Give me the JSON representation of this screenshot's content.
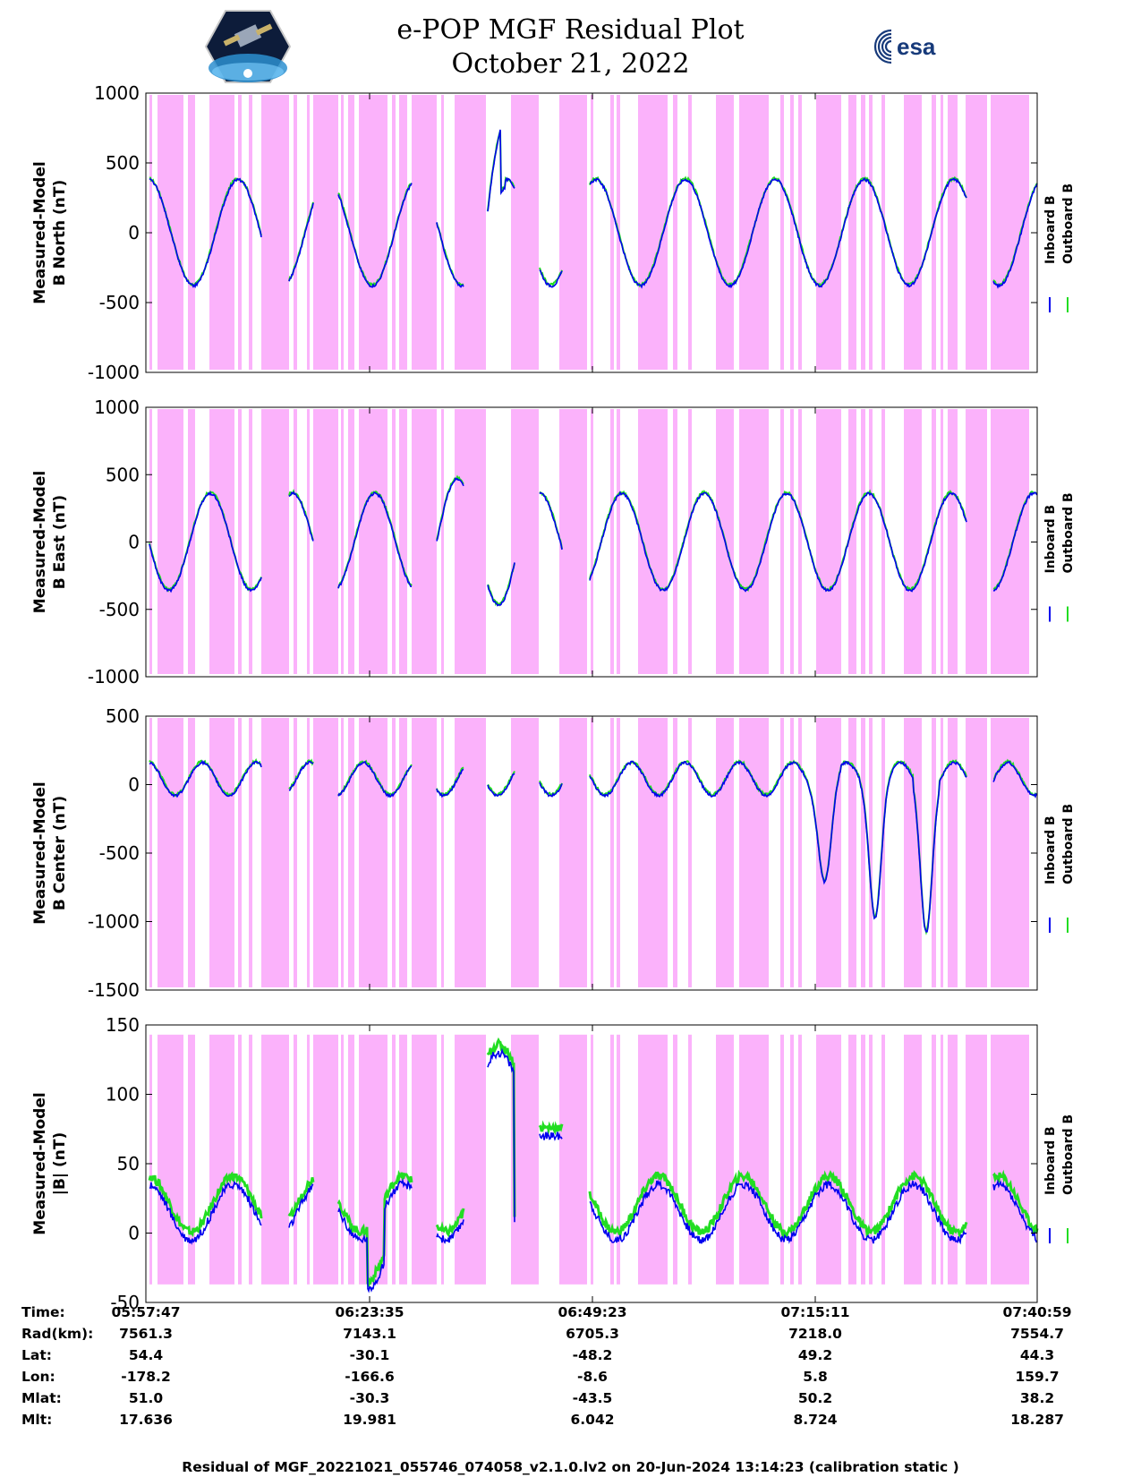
{
  "title": {
    "line1": "e-POP MGF Residual Plot",
    "line2": "October 21, 2022"
  },
  "logos": {
    "left": "cassiope-mission-logo",
    "right": "esa-logo",
    "right_text": "esa"
  },
  "colors": {
    "inboard": "#0000ee",
    "outboard": "#22dd22",
    "shading": "#fbb2fb",
    "axis": "#000000"
  },
  "legend": {
    "inboard": "Inboard B",
    "outboard": "Outboard B"
  },
  "chart_data": [
    {
      "type": "line",
      "ylabel_line1": "Measured-Model",
      "ylabel_line2": "B North (nT)",
      "ylim": [
        -1000,
        1000
      ],
      "yticks": [
        1000,
        500,
        0,
        -500,
        -1000
      ],
      "series": [
        {
          "name": "Inboard B",
          "values": []
        },
        {
          "name": "Outboard B",
          "values": []
        }
      ]
    },
    {
      "type": "line",
      "ylabel_line1": "Measured-Model",
      "ylabel_line2": "B East (nT)",
      "ylim": [
        -1000,
        1000
      ],
      "yticks": [
        1000,
        500,
        0,
        -500,
        -1000
      ],
      "series": [
        {
          "name": "Inboard B",
          "values": []
        },
        {
          "name": "Outboard B",
          "values": []
        }
      ]
    },
    {
      "type": "line",
      "ylabel_line1": "Measured-Model",
      "ylabel_line2": "B Center (nT)",
      "ylim": [
        -1500,
        500
      ],
      "yticks": [
        500,
        0,
        -500,
        -1000,
        -1500
      ],
      "series": [
        {
          "name": "Inboard B",
          "values": []
        },
        {
          "name": "Outboard B",
          "values": []
        }
      ]
    },
    {
      "type": "line",
      "ylabel_line1": "Measured-Model",
      "ylabel_line2": "|B| (nT)",
      "ylim": [
        -50,
        150
      ],
      "yticks": [
        150,
        100,
        50,
        0,
        -50
      ],
      "series": [
        {
          "name": "Inboard B",
          "values": []
        },
        {
          "name": "Outboard B",
          "values": []
        }
      ]
    }
  ],
  "x_axis": {
    "start": "05:57:47",
    "end": "07:40:59",
    "tick_times": [
      "05:57:47",
      "06:23:35",
      "06:49:23",
      "07:15:11",
      "07:40:59"
    ]
  },
  "info_table": {
    "labels": [
      "Time:",
      "Rad(km):",
      "Lat:",
      "Lon:",
      "Mlat:",
      "Mlt:"
    ],
    "columns": [
      [
        "05:57:47",
        "7561.3",
        "54.4",
        "-178.2",
        "51.0",
        "17.636"
      ],
      [
        "06:23:35",
        "7143.1",
        "-30.1",
        "-166.6",
        "-30.3",
        "19.981"
      ],
      [
        "06:49:23",
        "6705.3",
        "-48.2",
        "-8.6",
        "-43.5",
        "6.042"
      ],
      [
        "07:15:11",
        "7218.0",
        "49.2",
        "5.8",
        "50.2",
        "8.724"
      ],
      [
        "07:40:59",
        "7554.7",
        "44.3",
        "159.7",
        "38.2",
        "18.287"
      ]
    ]
  },
  "footer": "Residual of MGF_20221021_055746_074058_v2.1.0.lv2 on 20-Jun-2024 13:14:23 (calibration static )"
}
